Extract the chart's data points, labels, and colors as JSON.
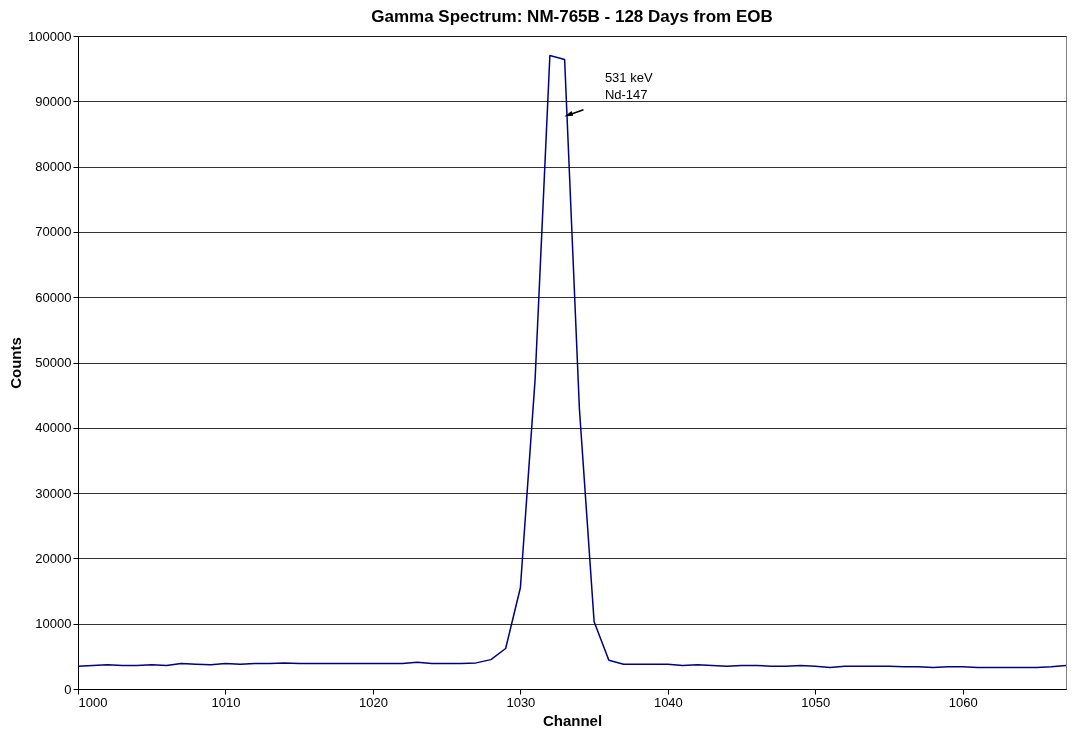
{
  "chart_data": {
    "type": "line",
    "title": "Gamma Spectrum:  NM-765B - 128 Days from EOB",
    "xlabel": "Channel",
    "ylabel": "Counts",
    "x": [
      1000,
      1001,
      1002,
      1003,
      1004,
      1005,
      1006,
      1007,
      1008,
      1009,
      1010,
      1011,
      1012,
      1013,
      1014,
      1015,
      1016,
      1017,
      1018,
      1019,
      1020,
      1021,
      1022,
      1023,
      1024,
      1025,
      1026,
      1027,
      1028,
      1029,
      1030,
      1031,
      1032,
      1033,
      1034,
      1035,
      1036,
      1037,
      1038,
      1039,
      1040,
      1041,
      1042,
      1043,
      1044,
      1045,
      1046,
      1047,
      1048,
      1049,
      1050,
      1051,
      1052,
      1053,
      1054,
      1055,
      1056,
      1057,
      1058,
      1059,
      1060,
      1061,
      1062,
      1063,
      1064,
      1065,
      1066,
      1067
    ],
    "series": [
      {
        "color": "#000080",
        "values": [
          3500,
          3600,
          3700,
          3600,
          3600,
          3700,
          3600,
          3900,
          3800,
          3700,
          3900,
          3800,
          3900,
          3900,
          4000,
          3900,
          3900,
          3900,
          3900,
          3900,
          3900,
          3900,
          3900,
          4100,
          3900,
          3900,
          3900,
          4000,
          4500,
          6200,
          15500,
          47500,
          97000,
          96400,
          43000,
          10300,
          4400,
          3800,
          3800,
          3800,
          3800,
          3600,
          3700,
          3600,
          3500,
          3600,
          3600,
          3500,
          3500,
          3600,
          3500,
          3300,
          3500,
          3500,
          3500,
          3500,
          3400,
          3400,
          3300,
          3400,
          3400,
          3300,
          3300,
          3300,
          3300,
          3300,
          3400,
          3600
        ]
      }
    ],
    "xlim": [
      1000,
      1067
    ],
    "xticks": [
      1000,
      1010,
      1020,
      1030,
      1040,
      1050,
      1060
    ],
    "ylim": [
      0,
      100000
    ],
    "yticks": [
      0,
      10000,
      20000,
      30000,
      40000,
      50000,
      60000,
      70000,
      80000,
      90000,
      100000
    ],
    "grid": "y",
    "legend": false,
    "marker": "none",
    "line_style": "solid",
    "annotations": [
      "531 keV\nNd-147"
    ]
  }
}
